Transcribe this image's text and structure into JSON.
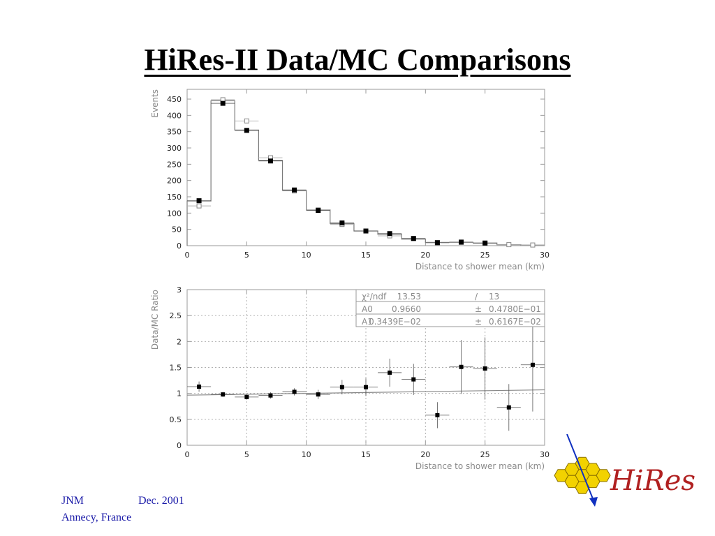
{
  "slide": {
    "title": "HiRes-II Data/MC Comparisons",
    "footer": {
      "author": "JNM",
      "date": "Dec. 2001",
      "location": "Annecy, France"
    },
    "logo_text": "HiRes"
  },
  "colors": {
    "footer_text": "#1a1aa8",
    "axis_text": "#8a8a8a",
    "frame": "#9a9a9a",
    "mc_histogram": "#7a7a7a",
    "data_marker": "#000000",
    "logo_hex_fill": "#f2d200",
    "logo_text": "#b02020",
    "logo_arrow": "#1030c0"
  },
  "chart_data": [
    {
      "type": "histogram",
      "xlabel": "Distance to shower mean (km)",
      "ylabel": "Events",
      "xlim": [
        0,
        30
      ],
      "ylim": [
        0,
        480
      ],
      "xticks": [
        0,
        5,
        10,
        15,
        20,
        25,
        30
      ],
      "yticks": [
        0,
        50,
        100,
        150,
        200,
        250,
        300,
        350,
        400,
        450
      ],
      "grid": false,
      "bin_edges": [
        0,
        2,
        4,
        6,
        8,
        10,
        12,
        14,
        16,
        18,
        20,
        22,
        24,
        26,
        28,
        30
      ],
      "series": [
        {
          "role": "mc_histogram",
          "style": "step",
          "values": [
            137,
            445,
            355,
            262,
            170,
            110,
            68,
            45,
            35,
            20,
            10,
            10,
            8,
            3,
            2
          ]
        },
        {
          "role": "open_markers",
          "style": "open-square",
          "values": [
            122,
            448,
            383,
            270,
            168,
            110,
            65,
            45,
            30,
            22,
            10,
            10,
            8,
            3,
            2
          ]
        },
        {
          "role": "filled_markers",
          "style": "filled-square",
          "values": [
            138,
            437,
            354,
            260,
            171,
            108,
            70,
            45,
            37,
            22,
            9,
            11,
            8,
            0,
            0
          ]
        }
      ]
    },
    {
      "type": "scatter",
      "xlabel": "Distance to shower mean (km)",
      "ylabel": "Data/MC Ratio",
      "xlim": [
        0,
        30
      ],
      "ylim": [
        0,
        3
      ],
      "xticks": [
        0,
        5,
        10,
        15,
        20,
        25,
        30
      ],
      "yticks": [
        "0",
        "0.5",
        "1",
        "1.5",
        "2",
        "2.5",
        "3"
      ],
      "grid": true,
      "x": [
        1,
        3,
        5,
        7,
        9,
        11,
        13,
        15,
        17,
        19,
        21,
        23,
        25,
        27,
        29
      ],
      "y": [
        1.13,
        0.98,
        0.93,
        0.96,
        1.03,
        0.98,
        1.12,
        1.12,
        1.4,
        1.27,
        0.58,
        1.51,
        1.48,
        0.73,
        1.55
      ],
      "y_err": [
        0.1,
        0.05,
        0.05,
        0.06,
        0.07,
        0.09,
        0.14,
        0.17,
        0.27,
        0.3,
        0.25,
        0.52,
        0.6,
        0.45,
        0.9
      ],
      "x_halfwidth": 1,
      "fit_line": {
        "x": [
          0,
          30
        ],
        "y": [
          0.966,
          1.069
        ]
      },
      "fit_box": {
        "rows": [
          [
            "χ²/ndf",
            "13.53",
            "/",
            "13"
          ],
          [
            "A0",
            "0.9660",
            "±",
            "0.4780E−01"
          ],
          [
            "A1",
            "0.3439E−02",
            "±",
            "0.6167E−02"
          ]
        ]
      }
    }
  ]
}
